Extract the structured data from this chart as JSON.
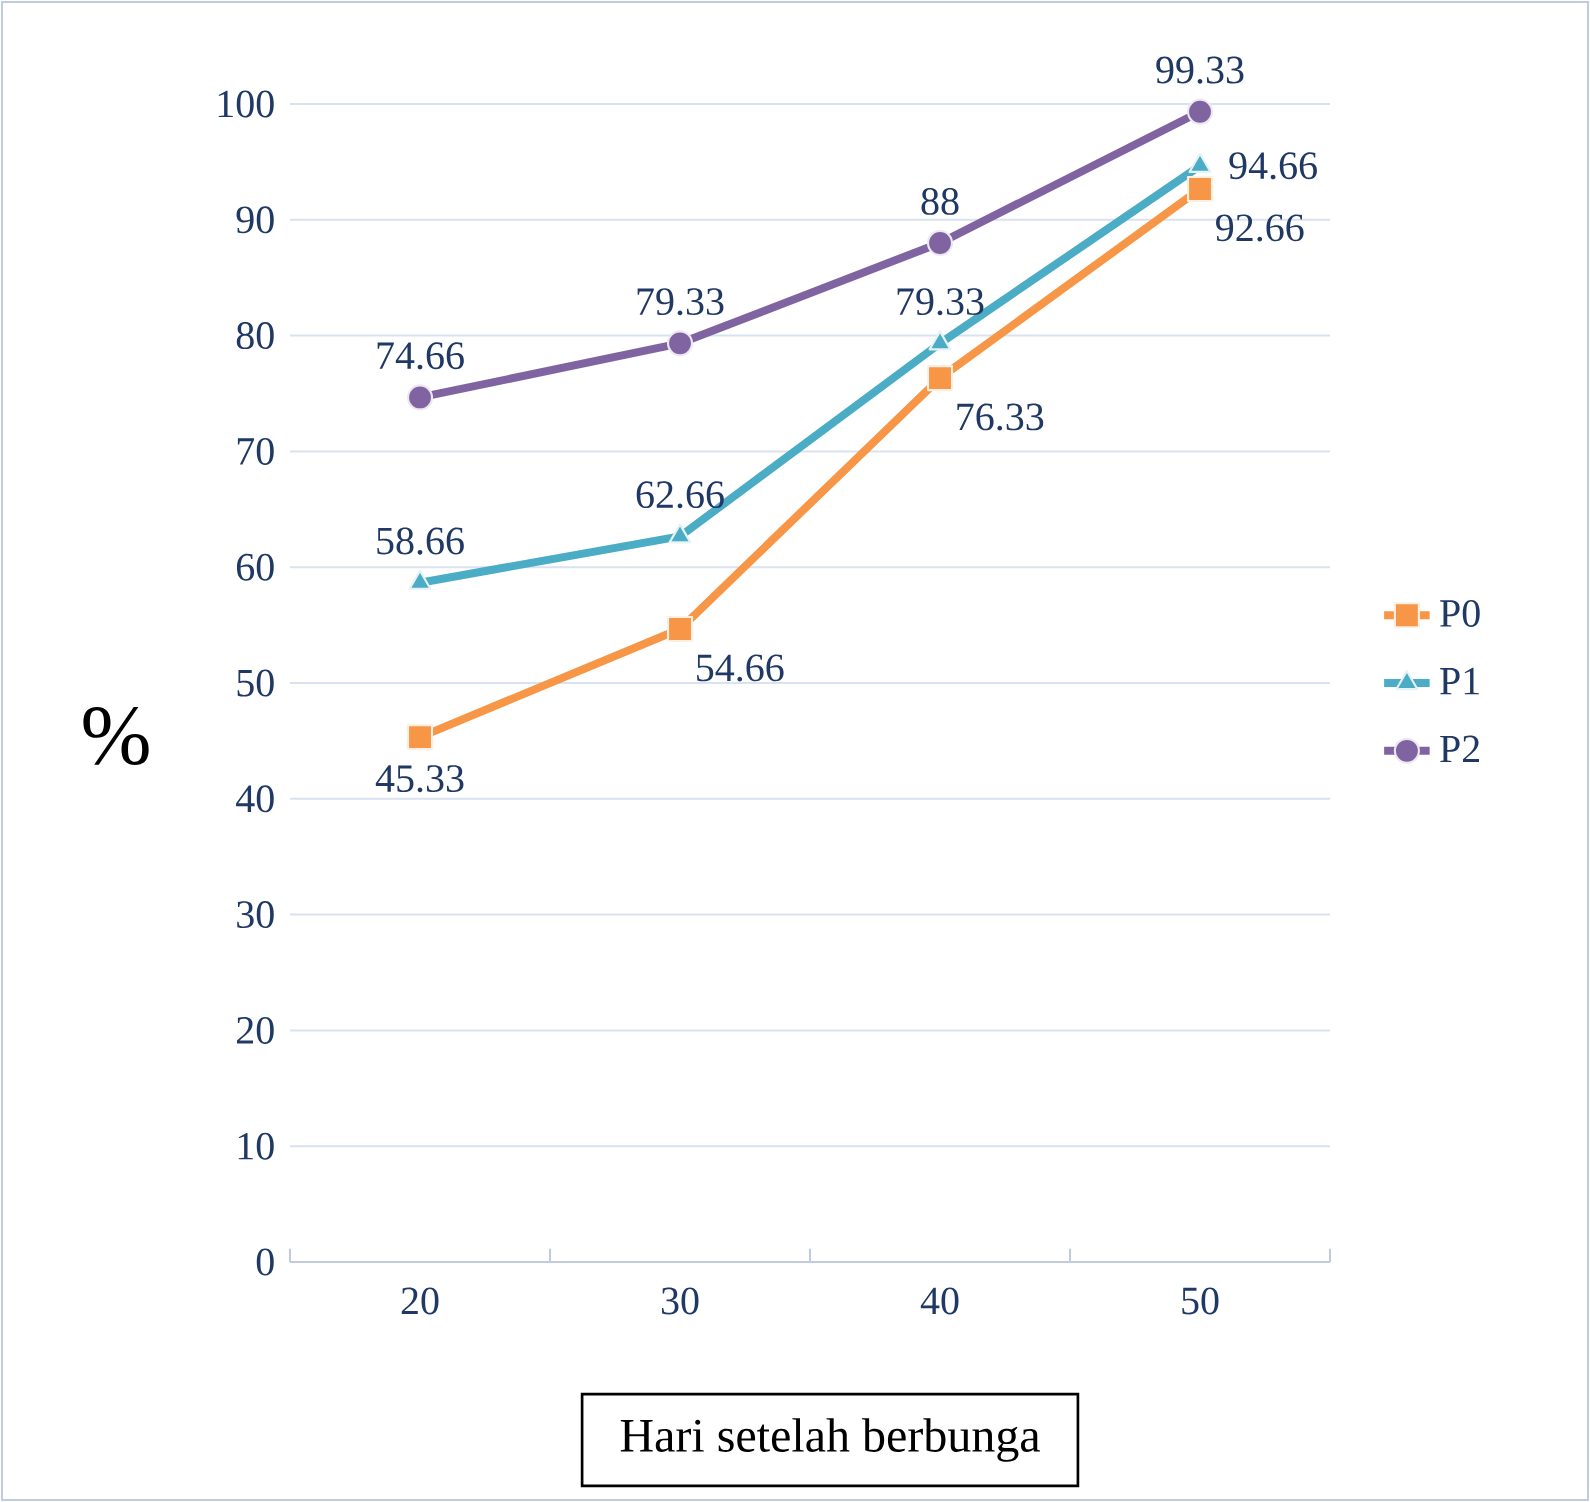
{
  "chart_data": {
    "type": "line",
    "xlabel": "Hari setelah berbunga",
    "ylabel": "%",
    "categories": [
      "20",
      "30",
      "40",
      "50"
    ],
    "series": [
      {
        "name": "P0",
        "color": "#f79646",
        "marker": "square",
        "values": [
          45.33,
          54.66,
          76.33,
          92.66
        ]
      },
      {
        "name": "P1",
        "color": "#4bacc6",
        "marker": "triangle",
        "values": [
          58.66,
          62.66,
          79.33,
          94.66
        ]
      },
      {
        "name": "P2",
        "color": "#8064a2",
        "marker": "circle",
        "values": [
          74.66,
          79.33,
          88,
          99.33
        ]
      }
    ],
    "ylim": [
      0,
      100
    ],
    "yticks": [
      0,
      10,
      20,
      30,
      40,
      50,
      60,
      70,
      80,
      90,
      100
    ],
    "grid": "y",
    "legend": "right",
    "data_labels": true
  }
}
